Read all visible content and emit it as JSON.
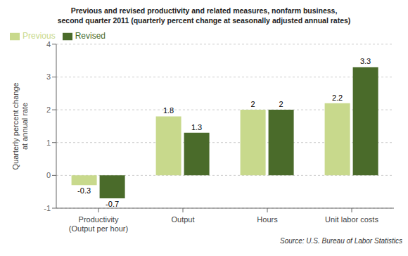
{
  "chart_data": {
    "type": "bar",
    "title": "Previous and revised productivity and related measures, nonfarm business,\nsecond quarter 2011 (quarterly percent change at seasonally adjusted annual rates)",
    "categories": [
      "Productivity\n(Output per hour)",
      "Output",
      "Hours",
      "Unit labor costs"
    ],
    "series": [
      {
        "name": "Previous",
        "color": "#c8d98c",
        "values": [
          -0.3,
          1.8,
          2.0,
          2.2
        ]
      },
      {
        "name": "Revised",
        "color": "#4a6b2a",
        "values": [
          -0.7,
          1.3,
          2.0,
          3.3
        ]
      }
    ],
    "ylabel": "Quarterly percent change\nat annual rate",
    "ylim": [
      -1,
      4
    ],
    "yticks": [
      -1,
      0,
      1,
      2,
      3,
      4
    ],
    "grid": true,
    "legend": "upper left",
    "data_labels": true,
    "annotations": [
      "Source: U.S. Bureau of Labor Statistics"
    ]
  }
}
